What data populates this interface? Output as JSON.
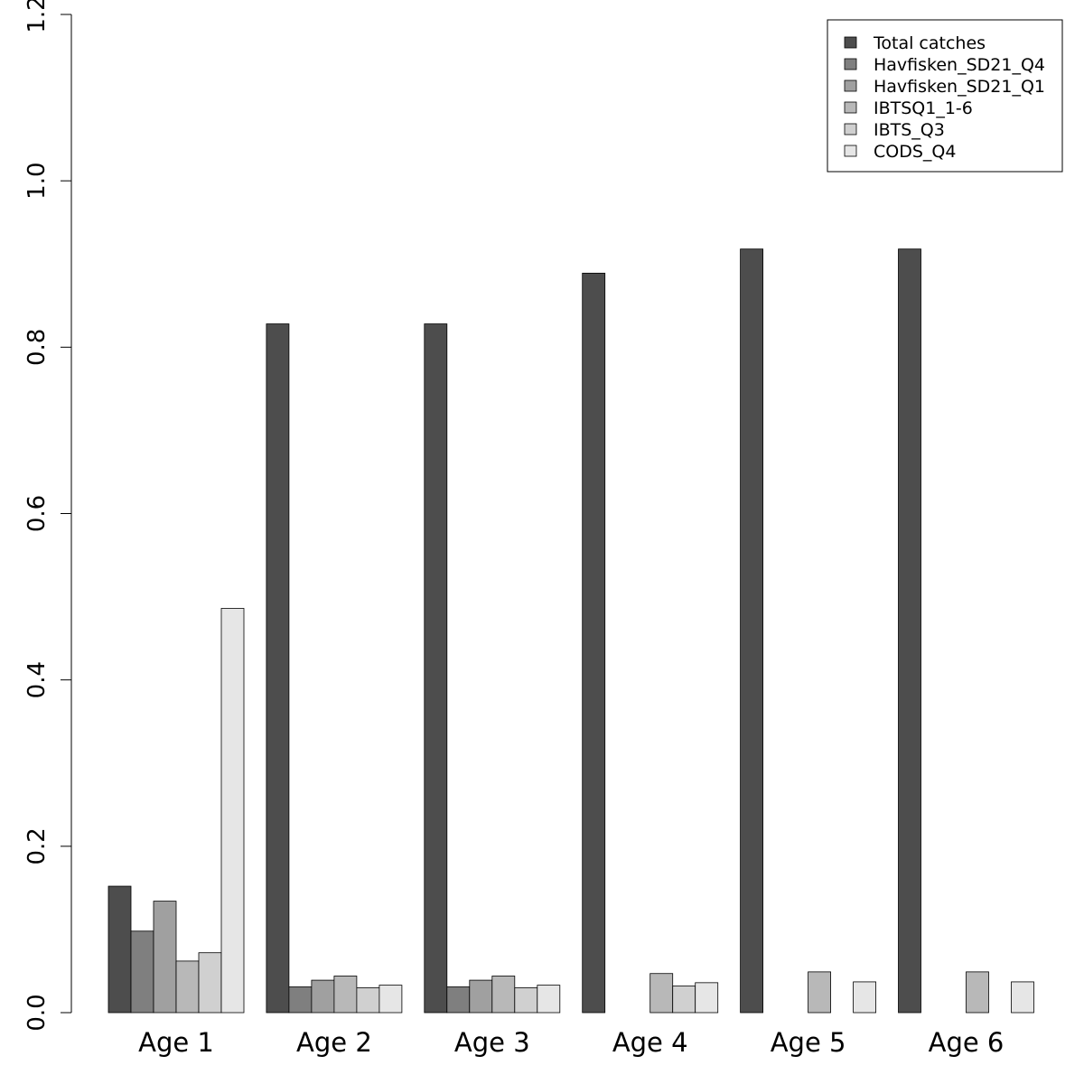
{
  "chart_data": {
    "type": "bar",
    "title": "",
    "xlabel": "",
    "ylabel": "",
    "categories": [
      "Age 1",
      "Age 2",
      "Age 3",
      "Age 4",
      "Age 5",
      "Age 6"
    ],
    "ylim": [
      0,
      1.2
    ],
    "yticks": [
      "0.0",
      "0.2",
      "0.4",
      "0.6",
      "0.8",
      "1.0",
      "1.2"
    ],
    "legend_position": "top-right",
    "grid": false,
    "series": [
      {
        "name": "Total catches",
        "color": "#4d4d4d",
        "values": [
          0.152,
          0.828,
          0.828,
          0.889,
          0.918,
          0.918
        ]
      },
      {
        "name": "Havfisken_SD21_Q4",
        "color": "#7f7f7f",
        "values": [
          0.098,
          0.031,
          0.031,
          0,
          0,
          0
        ]
      },
      {
        "name": "Havfisken_SD21_Q1",
        "color": "#a0a0a0",
        "values": [
          0.134,
          0.039,
          0.039,
          0,
          0,
          0
        ]
      },
      {
        "name": "IBTSQ1_1-6",
        "color": "#b8b8b8",
        "values": [
          0.062,
          0.044,
          0.044,
          0.047,
          0.049,
          0.049
        ]
      },
      {
        "name": "IBTS_Q3",
        "color": "#d0d0d0",
        "values": [
          0.072,
          0.03,
          0.03,
          0.032,
          0,
          0
        ]
      },
      {
        "name": "CODS_Q4",
        "color": "#e6e6e6",
        "values": [
          0.486,
          0.033,
          0.033,
          0.036,
          0.037,
          0.037
        ]
      }
    ]
  }
}
